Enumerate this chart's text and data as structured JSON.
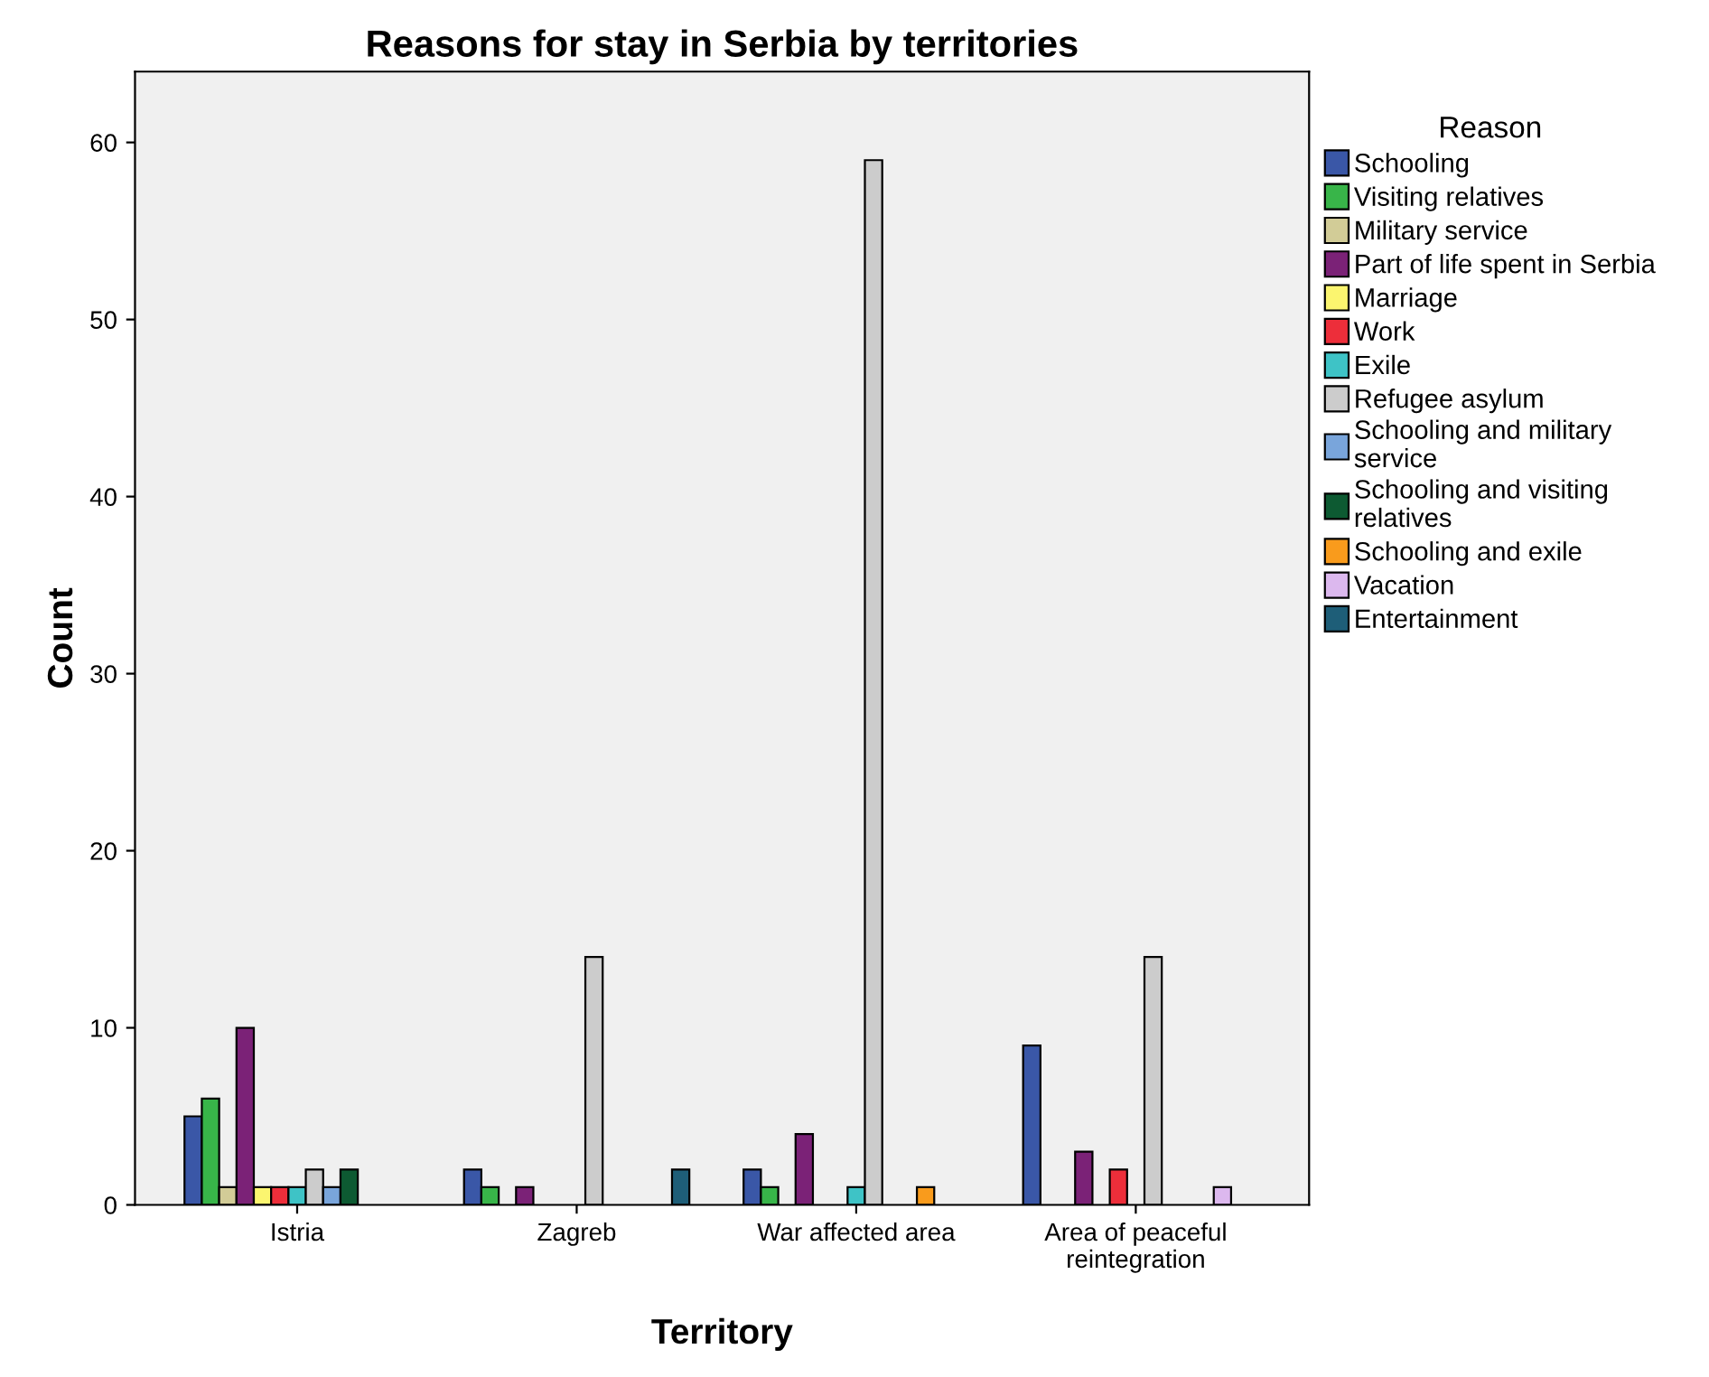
{
  "chart_data": {
    "type": "bar",
    "title": "Reasons for stay in Serbia by territories",
    "xlabel": "Territory",
    "ylabel": "Count",
    "legend_title": "Reason",
    "legend": "right",
    "grid": false,
    "categories": [
      "Istria",
      "Zagreb",
      "War affected area",
      "Area of peaceful\nreintegration"
    ],
    "ylim": [
      0,
      64
    ],
    "yticks": [
      0,
      10,
      20,
      30,
      40,
      50,
      60
    ],
    "series": [
      {
        "name": "Schooling",
        "color": "#3a57a7",
        "values": [
          5,
          2,
          2,
          9
        ]
      },
      {
        "name": "Visiting relatives",
        "color": "#38b549",
        "values": [
          6,
          1,
          1,
          null
        ]
      },
      {
        "name": "Military service",
        "color": "#d2cc97",
        "values": [
          1,
          null,
          null,
          null
        ]
      },
      {
        "name": "Part of life spent in Serbia",
        "color": "#7b2277",
        "values": [
          10,
          1,
          4,
          3
        ]
      },
      {
        "name": "Marriage",
        "color": "#fbf56f",
        "values": [
          1,
          null,
          null,
          null
        ]
      },
      {
        "name": "Work",
        "color": "#ed2e3a",
        "values": [
          1,
          null,
          null,
          2
        ]
      },
      {
        "name": "Exile",
        "color": "#3ec3c6",
        "values": [
          1,
          null,
          1,
          null
        ]
      },
      {
        "name": "Refugee asylum",
        "color": "#cccccc",
        "values": [
          2,
          14,
          59,
          14
        ]
      },
      {
        "name": "Schooling and military\nservice",
        "color": "#79a5db",
        "values": [
          1,
          null,
          null,
          null
        ]
      },
      {
        "name": "Schooling and visiting\nrelatives",
        "color": "#0d5a32",
        "values": [
          2,
          null,
          null,
          null
        ]
      },
      {
        "name": "Schooling and exile",
        "color": "#f99b1c",
        "values": [
          null,
          null,
          1,
          null
        ]
      },
      {
        "name": "Vacation",
        "color": "#dcb8ee",
        "values": [
          null,
          null,
          null,
          1
        ]
      },
      {
        "name": "Entertainment",
        "color": "#1e5e78",
        "values": [
          null,
          2,
          null,
          null
        ]
      }
    ]
  }
}
